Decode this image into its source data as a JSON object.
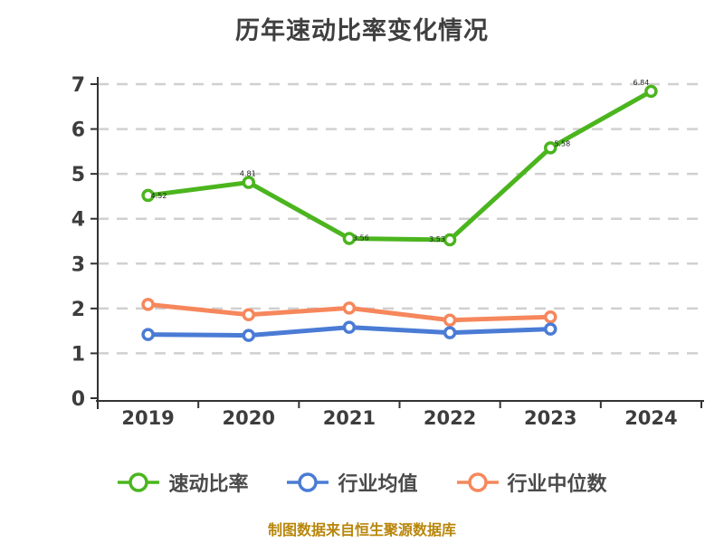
{
  "page": {
    "title": "历年速动比率变化情况",
    "footer": "制图数据来自恒生聚源数据库"
  },
  "colors": {
    "quick_ratio": "#4bb51e",
    "industry_avg": "#4a7bd5",
    "industry_median": "#f6875c",
    "grid": "#d0d0d0",
    "axis": "#333333",
    "tick_label": "#3d3d3d",
    "point_label": "#1d1d1d",
    "legend_text": "#4a4a4a",
    "title_text": "#3f3f3f",
    "footer_text": "#b8860b",
    "background": "#ffffff",
    "marker_fill": "#ffffff"
  },
  "chart_data": {
    "type": "line",
    "title": "历年速动比率变化情况",
    "categories": [
      "2019",
      "2020",
      "2021",
      "2022",
      "2023",
      "2024"
    ],
    "series": [
      {
        "name": "速动比率",
        "color": "#4bb51e",
        "values": [
          4.52,
          4.81,
          3.56,
          3.53,
          5.58,
          6.84
        ],
        "point_labels": [
          "4.52",
          "4.81",
          "3.56",
          "3.53",
          "5.58",
          "6.84"
        ]
      },
      {
        "name": "行业均值",
        "color": "#4a7bd5",
        "values": [
          1.42,
          1.4,
          1.58,
          1.46,
          1.54,
          null
        ]
      },
      {
        "name": "行业中位数",
        "color": "#f6875c",
        "values": [
          2.09,
          1.86,
          2.01,
          1.74,
          1.81,
          null
        ]
      }
    ],
    "xlabel": "",
    "ylabel": "",
    "ylim": [
      0,
      7
    ],
    "yticks": [
      0,
      1,
      2,
      3,
      4,
      5,
      6,
      7
    ],
    "grid": "horizontal-dashed",
    "legend_position": "bottom",
    "marker": "circle-white-fill",
    "footer": "制图数据来自恒生聚源数据库"
  }
}
